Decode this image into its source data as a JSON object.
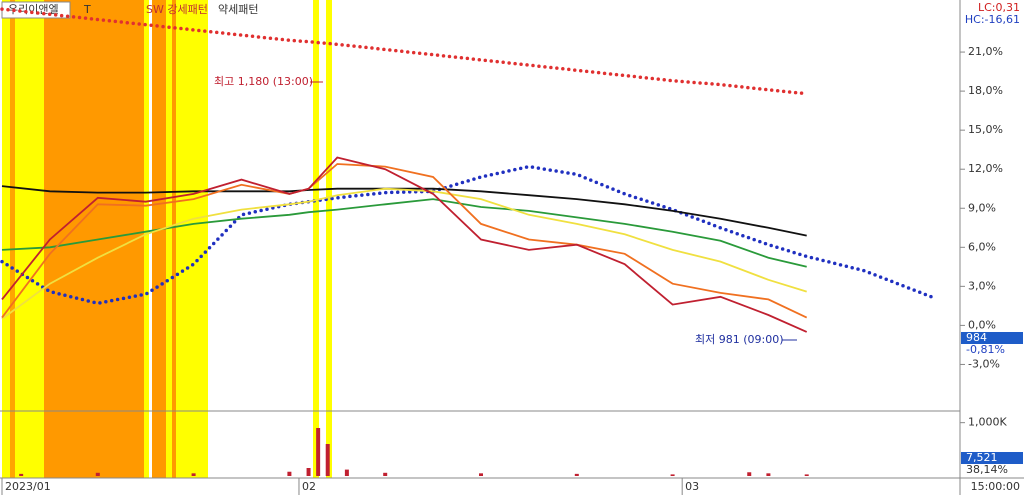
{
  "chart_data": [
    {
      "type": "line",
      "stock_name": "우리이앤엘",
      "indicator_labels": [
        "T",
        "SW 강세패턴",
        "약세패턴"
      ],
      "lc_label": "LC:0,31",
      "hc_label": "HC:-16,61",
      "high_annotation": "최고 1,180 (13:00)",
      "low_annotation": "최저 981 (09:00)",
      "last_price_label": "984",
      "last_change_label": "-0,81%",
      "x": [
        0,
        5,
        10,
        15,
        20,
        25,
        30,
        32,
        35,
        40,
        45,
        50,
        55,
        60,
        65,
        70,
        75,
        80,
        84,
        90,
        97
      ],
      "xlim": [
        0,
        100
      ],
      "ylim": [
        -6.5,
        25
      ],
      "yticks": [
        {
          "value": 21,
          "label": "21,0%"
        },
        {
          "value": 18,
          "label": "18,0%"
        },
        {
          "value": 15,
          "label": "15,0%"
        },
        {
          "value": 12,
          "label": "12,0%"
        },
        {
          "value": 9,
          "label": "9,0%"
        },
        {
          "value": 6,
          "label": "6,0%"
        },
        {
          "value": 3,
          "label": "3,0%"
        },
        {
          "value": 0,
          "label": "0,0%"
        },
        {
          "value": -3,
          "label": "-3,0%"
        }
      ],
      "series": [
        {
          "color": "#e03030",
          "style": "dotted",
          "values": [
            24.3,
            23.9,
            23.5,
            23.1,
            22.7,
            22.3,
            21.9,
            21.8,
            21.6,
            21.2,
            20.8,
            20.4,
            20.0,
            19.6,
            19.2,
            18.8,
            18.5,
            18.1,
            17.8,
            null,
            null
          ]
        },
        {
          "color": "#2030c0",
          "style": "dotted",
          "values": [
            4.9,
            2.6,
            1.7,
            2.4,
            4.7,
            8.5,
            9.3,
            9.5,
            9.8,
            10.2,
            10.3,
            11.4,
            12.2,
            11.6,
            10.1,
            8.9,
            7.5,
            6.2,
            5.3,
            4.2,
            2.2
          ]
        },
        {
          "color": "#111111",
          "style": "solid",
          "values": [
            10.7,
            10.3,
            10.2,
            10.2,
            10.3,
            10.3,
            10.3,
            10.4,
            10.5,
            10.5,
            10.5,
            10.3,
            10.0,
            9.7,
            9.3,
            8.8,
            8.2,
            7.5,
            6.9,
            null,
            null
          ]
        },
        {
          "color": "#2a9a3a",
          "style": "solid",
          "values": [
            5.8,
            6.0,
            6.6,
            7.2,
            7.8,
            8.2,
            8.5,
            8.7,
            8.9,
            9.3,
            9.7,
            9.1,
            8.8,
            8.3,
            7.8,
            7.2,
            6.5,
            5.2,
            4.5,
            null,
            null
          ]
        },
        {
          "color": "#f0e040",
          "style": "solid",
          "values": [
            0.5,
            3.2,
            5.2,
            7.0,
            8.2,
            8.9,
            9.3,
            9.5,
            10.0,
            10.5,
            10.3,
            9.7,
            8.5,
            7.8,
            7.0,
            5.8,
            4.9,
            3.5,
            2.6,
            null,
            null
          ]
        },
        {
          "color": "#f07020",
          "style": "solid",
          "values": [
            0.6,
            5.5,
            9.3,
            9.2,
            9.7,
            10.8,
            10.1,
            10.5,
            12.4,
            12.2,
            11.4,
            7.8,
            6.6,
            6.2,
            5.5,
            3.2,
            2.5,
            2.0,
            0.6,
            null,
            null
          ]
        },
        {
          "color": "#c02030",
          "style": "solid",
          "values": [
            2.0,
            6.6,
            9.8,
            9.5,
            10.1,
            11.2,
            10.1,
            10.5,
            12.9,
            12.0,
            10.1,
            6.6,
            5.8,
            6.2,
            4.7,
            1.6,
            2.2,
            0.8,
            -0.5,
            null,
            null
          ]
        }
      ]
    },
    {
      "type": "bar",
      "last_volume_label": "7,521",
      "ratio_label": "38,14%",
      "time_label": "15:00:00",
      "x": [
        2,
        10,
        20,
        30,
        32,
        33,
        34,
        36,
        40,
        50,
        60,
        70,
        78,
        80,
        84
      ],
      "values": [
        40000,
        60000,
        50000,
        80000,
        150000,
        900000,
        600000,
        120000,
        60000,
        50000,
        40000,
        30000,
        70000,
        50000,
        30000
      ],
      "color": "#c02030",
      "xlim": [
        0,
        100
      ],
      "ylim": [
        0,
        1200000
      ],
      "yticks": [
        {
          "value": 1000000,
          "label": "1,000K"
        }
      ],
      "xticks": [
        {
          "value": 0,
          "label": "2023/01"
        },
        {
          "value": 31,
          "label": "02"
        },
        {
          "value": 71,
          "label": "03"
        }
      ]
    }
  ]
}
